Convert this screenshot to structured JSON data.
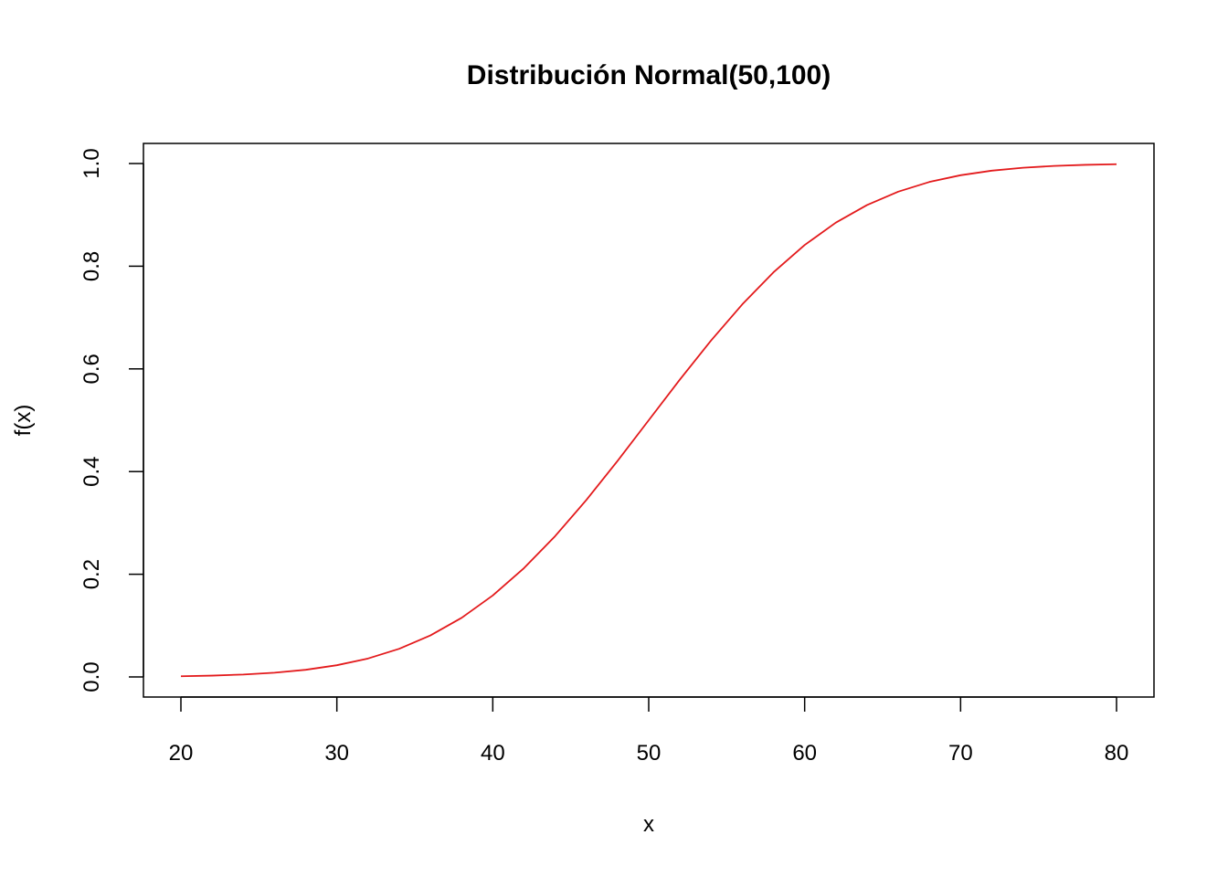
{
  "chart_data": {
    "type": "line",
    "title": "Distribución Normal(50,100)",
    "xlabel": "x",
    "ylabel": "f(x)",
    "xlim": [
      20,
      80
    ],
    "ylim": [
      0,
      1
    ],
    "x_ticks": [
      {
        "value": 20,
        "label": "20"
      },
      {
        "value": 30,
        "label": "30"
      },
      {
        "value": 40,
        "label": "40"
      },
      {
        "value": 50,
        "label": "50"
      },
      {
        "value": 60,
        "label": "60"
      },
      {
        "value": 70,
        "label": "70"
      },
      {
        "value": 80,
        "label": "80"
      }
    ],
    "y_ticks": [
      {
        "value": 0.0,
        "label": "0.0"
      },
      {
        "value": 0.2,
        "label": "0.2"
      },
      {
        "value": 0.4,
        "label": "0.4"
      },
      {
        "value": 0.6,
        "label": "0.6"
      },
      {
        "value": 0.8,
        "label": "0.8"
      },
      {
        "value": 1.0,
        "label": "1.0"
      }
    ],
    "grid": false,
    "legend": "none",
    "series": [
      {
        "color": "#e31a1c",
        "x": [
          20,
          22,
          24,
          26,
          28,
          30,
          32,
          34,
          36,
          38,
          40,
          42,
          44,
          46,
          48,
          50,
          52,
          54,
          56,
          58,
          60,
          62,
          64,
          66,
          68,
          70,
          72,
          74,
          76,
          78,
          80
        ],
        "y": [
          0.0013,
          0.0026,
          0.0047,
          0.0082,
          0.0139,
          0.0228,
          0.0359,
          0.0548,
          0.0808,
          0.1151,
          0.1587,
          0.2119,
          0.2743,
          0.3446,
          0.4207,
          0.5,
          0.5793,
          0.6554,
          0.7257,
          0.7881,
          0.8413,
          0.8849,
          0.9192,
          0.9452,
          0.9641,
          0.9772,
          0.9861,
          0.9918,
          0.9953,
          0.9974,
          0.9987
        ]
      }
    ]
  }
}
